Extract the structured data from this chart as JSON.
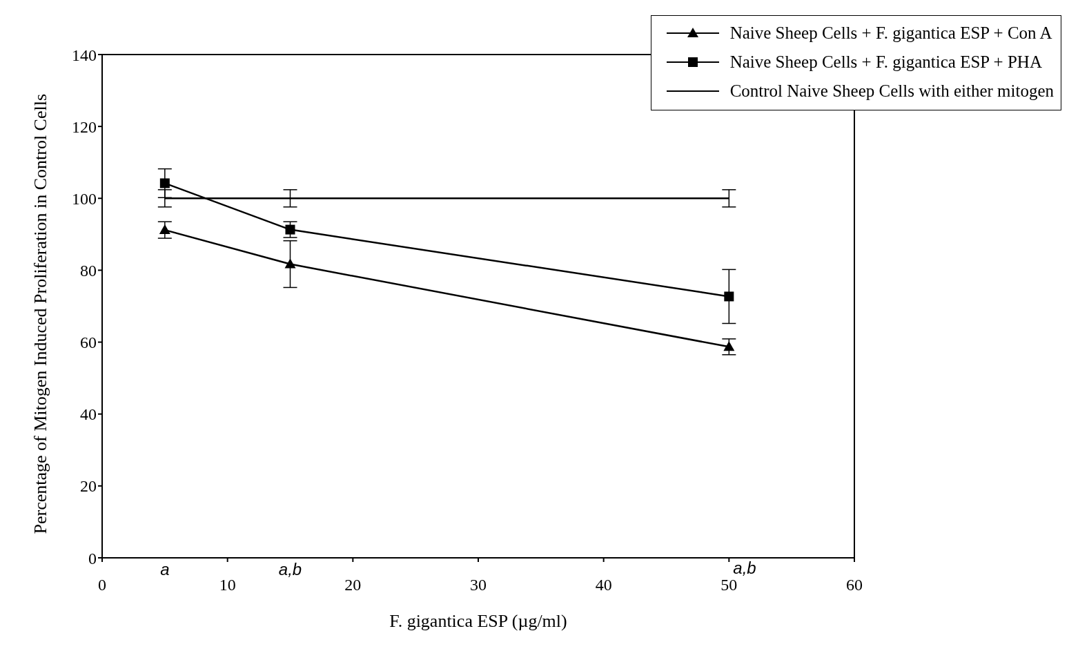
{
  "chart_data": {
    "type": "line",
    "xlabel": "F. gigantica ESP (µg/ml)",
    "ylabel": "Percentage of Mitogen Induced Proliferation in Control Cells",
    "xlim": [
      0,
      60
    ],
    "xticks": [
      0,
      10,
      20,
      30,
      40,
      50,
      60
    ],
    "ylim": [
      0,
      140
    ],
    "yticks": [
      0,
      20,
      40,
      60,
      80,
      100,
      120,
      140
    ],
    "legend": "top right",
    "series": [
      {
        "name": "Naive Sheep Cells + F. gigantica ESP + Con A",
        "color": "#000000",
        "marker": "triangle",
        "x": [
          5,
          15,
          50
        ],
        "values": [
          91.2,
          81.7,
          58.7
        ],
        "errors": [
          2.3,
          6.5,
          2.2
        ]
      },
      {
        "name": "Naive Sheep Cells + F. gigantica ESP + PHA",
        "color": "#000000",
        "marker": "square",
        "x": [
          5,
          15,
          50
        ],
        "values": [
          104.2,
          91.3,
          72.7
        ],
        "errors": [
          4,
          2.2,
          7.5
        ]
      },
      {
        "name": "Control Naive Sheep Cells with either mitogen",
        "color": "#000000",
        "marker": "none",
        "x": [
          5,
          15,
          50
        ],
        "values": [
          100,
          100,
          100
        ],
        "errors": [
          2.4,
          2.4,
          2.4
        ]
      }
    ],
    "annotations": [
      "a",
      "a,b",
      "a,b"
    ]
  }
}
